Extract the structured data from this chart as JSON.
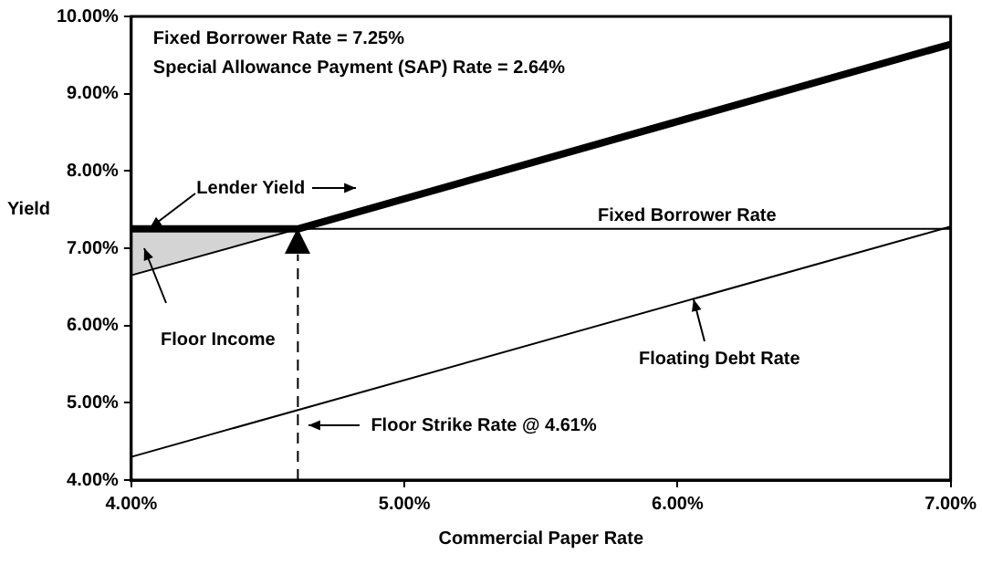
{
  "chart_data": {
    "type": "line",
    "xlabel": "Commercial Paper Rate",
    "ylabel": "Yield",
    "annotations": [
      "Fixed Borrower Rate = 7.25%",
      "Special Allowance Payment (SAP) Rate = 2.64%",
      {
        "text": "Lender Yield",
        "x": 4.07,
        "y": 7.25
      },
      "Floor Income",
      {
        "text": "Floating Debt Rate",
        "x": 6.06,
        "y": 6.35
      }
    ],
    "series": [
      {
        "color": "#000000",
        "x": [
          4,
          4.61,
          7
        ],
        "values": [
          7.25,
          7.25,
          9.64
        ]
      },
      {
        "color": "#000000",
        "x": [
          4,
          4.61
        ],
        "values": [
          6.65,
          7.25
        ],
        "lower": [
          6.65,
          7.25
        ],
        "upper": [
          7.25,
          7.25
        ]
      },
      {
        "color": "#000000",
        "x": [
          4,
          7
        ],
        "values": [
          4.3,
          7.28
        ]
      }
    ],
    "ref_lines": [
      {
        "axis": "y",
        "value": 7.25,
        "label": "Fixed Borrower Rate"
      },
      {
        "axis": "x",
        "value": 4.61,
        "label": "Floor Strike Rate @ 4.61%",
        "line_style": "dashed"
      }
    ],
    "xlim": [
      4,
      7
    ],
    "xticks": [
      {
        "value": 4,
        "label": "4.00%"
      },
      {
        "value": 5,
        "label": "5.00%"
      },
      {
        "value": 6,
        "label": "6.00%"
      },
      {
        "value": 7,
        "label": "7.00%"
      }
    ],
    "ylim": [
      4,
      10
    ],
    "yticks": [
      {
        "value": 4,
        "label": "4.00%"
      },
      {
        "value": 5,
        "label": "5.00%"
      },
      {
        "value": 6,
        "label": "6.00%"
      },
      {
        "value": 7,
        "label": "7.00%"
      },
      {
        "value": 8,
        "label": "8.00%"
      },
      {
        "value": 9,
        "label": "9.00%"
      },
      {
        "value": 10,
        "label": "10.00%"
      }
    ],
    "grid": false,
    "legend": false,
    "marker": "none",
    "line_style": "solid"
  }
}
